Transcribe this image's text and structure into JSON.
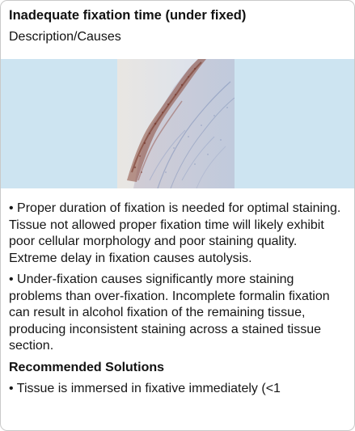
{
  "card": {
    "title": "Inadequate fixation time (under fixed)",
    "subtitle": "Description/Causes",
    "paragraphs": [
      "• Proper duration of fixation is needed for optimal staining. Tissue not allowed proper fixation time will likely exhibit poor cellular morphology and poor staining quality. Extreme delay in fixation causes autolysis.",
      "• Under-fixation causes significantly more staining problems than over-fixation. Incomplete formalin fixation can result in alcohol fixation of the remaining tissue, producing inconsistent staining across a stained tissue section."
    ],
    "solutions_title": "Recommended Solutions",
    "solution_text": "• Tissue is immersed in fixative immediately (<1"
  },
  "colors": {
    "band": "#cde4f1",
    "stain_brown": "#8b4a3a",
    "stain_blue": "#7d8fb8"
  }
}
